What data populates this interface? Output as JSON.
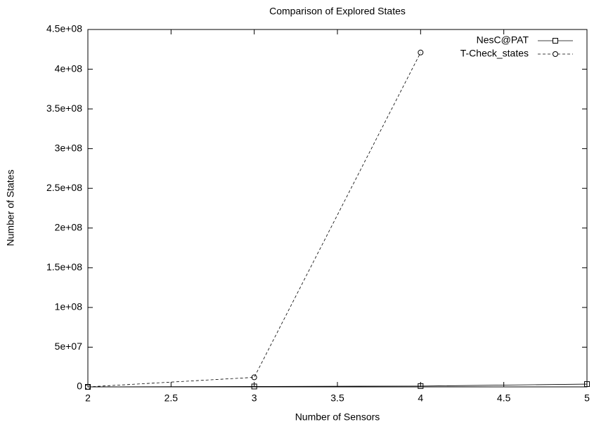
{
  "chart_data": {
    "type": "line",
    "title": "Comparison of Explored States",
    "x_label": "Number of Sensors",
    "y_label": "Number of States",
    "x": [
      2,
      3,
      4,
      5
    ],
    "series": [
      {
        "name": "NesC@PAT",
        "color": "#000000",
        "dash": "solid",
        "marker": "square",
        "values": [
          5000,
          500000,
          1000000,
          3500000
        ]
      },
      {
        "name": "T-Check_states",
        "color": "#000000",
        "dash": "dashed",
        "marker": "circle",
        "values": [
          1000,
          12000000,
          421000000,
          null
        ]
      }
    ],
    "xlim": [
      2,
      5
    ],
    "xticks": [
      2,
      2.5,
      3,
      3.5,
      4,
      4.5,
      5
    ],
    "ylim": [
      0,
      450000000
    ],
    "yticks": [
      0,
      {
        "value": 50000000,
        "label": "5e+07"
      },
      {
        "value": 100000000,
        "label": "1e+08"
      },
      {
        "value": 150000000,
        "label": "1.5e+08"
      },
      {
        "value": 200000000,
        "label": "2e+08"
      },
      {
        "value": 250000000,
        "label": "2.5e+08"
      },
      {
        "value": 300000000,
        "label": "3e+08"
      },
      {
        "value": 350000000,
        "label": "3.5e+08"
      },
      {
        "value": 400000000,
        "label": "4e+08"
      },
      {
        "value": 450000000,
        "label": "4.5e+08"
      }
    ],
    "grid": false,
    "legend": "top-right"
  }
}
